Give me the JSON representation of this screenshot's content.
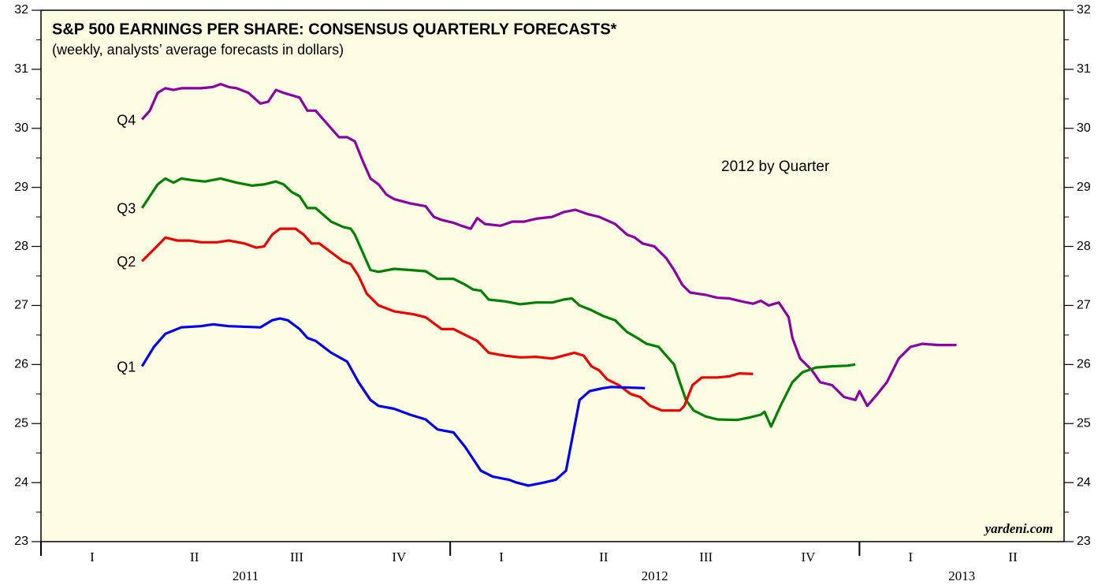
{
  "chart_data": {
    "type": "line",
    "title": "S&P 500 EARNINGS PER SHARE: CONSENSUS QUARTERLY FORECASTS*",
    "subtitle": "(weekly, analysts’ average forecasts in dollars)",
    "annotations": [
      "2012 by Quarter",
      "yardeni.com"
    ],
    "xlim": [
      2011,
      2013.5
    ],
    "year_ticks": [
      2011,
      2012,
      2013
    ],
    "quarter_labels": [
      {
        "value": 2011.125,
        "label": "I"
      },
      {
        "value": 2011.375,
        "label": "II"
      },
      {
        "value": 2011.625,
        "label": "III"
      },
      {
        "value": 2011.875,
        "label": "IV"
      },
      {
        "value": 2012.125,
        "label": "I"
      },
      {
        "value": 2012.375,
        "label": "II"
      },
      {
        "value": 2012.625,
        "label": "III"
      },
      {
        "value": 2012.875,
        "label": "IV"
      },
      {
        "value": 2013.125,
        "label": "I"
      },
      {
        "value": 2013.375,
        "label": "II"
      }
    ],
    "year_labels": [
      {
        "value": 2011.5,
        "label": "2011"
      },
      {
        "value": 2012.5,
        "label": "2012"
      },
      {
        "value": 2013.25,
        "label": "2013"
      }
    ],
    "ylim": [
      23,
      32
    ],
    "yticks": [
      23,
      24,
      25,
      26,
      27,
      28,
      29,
      30,
      31,
      32
    ],
    "series": [
      {
        "name": "Q4",
        "color": "#8b00a3",
        "x": [
          2011.247,
          2011.266,
          2011.285,
          2011.304,
          2011.324,
          2011.343,
          2011.391,
          2011.42,
          2011.439,
          2011.459,
          2011.478,
          2011.507,
          2011.536,
          2011.555,
          2011.574,
          2011.593,
          2011.632,
          2011.651,
          2011.671,
          2011.69,
          2011.728,
          2011.748,
          2011.767,
          2011.786,
          2011.805,
          2011.825,
          2011.844,
          2011.863,
          2011.902,
          2011.94,
          2011.96,
          2011.979,
          2012.008,
          2012.027,
          2012.05,
          2012.066,
          2012.085,
          2012.123,
          2012.152,
          2012.181,
          2012.21,
          2012.249,
          2012.277,
          2012.306,
          2012.335,
          2012.364,
          2012.403,
          2012.432,
          2012.451,
          2012.47,
          2012.499,
          2012.528,
          2012.547,
          2012.567,
          2012.586,
          2012.624,
          2012.653,
          2012.682,
          2012.711,
          2012.74,
          2012.759,
          2012.778,
          2012.803,
          2012.827,
          2012.836,
          2012.855,
          2012.884,
          2012.904,
          2012.933,
          2012.962,
          2012.99,
          2013.0,
          2013.019,
          2013.044,
          2013.067,
          2013.096,
          2013.125,
          2013.154,
          2013.193,
          2013.237
        ],
        "values": [
          30.15,
          30.3,
          30.6,
          30.68,
          30.65,
          30.68,
          30.68,
          30.7,
          30.75,
          30.7,
          30.68,
          30.6,
          30.42,
          30.45,
          30.65,
          30.6,
          30.52,
          30.3,
          30.3,
          30.15,
          29.85,
          29.85,
          29.78,
          29.45,
          29.15,
          29.05,
          28.88,
          28.8,
          28.73,
          28.68,
          28.5,
          28.45,
          28.4,
          28.35,
          28.3,
          28.48,
          28.38,
          28.35,
          28.42,
          28.42,
          28.47,
          28.5,
          28.58,
          28.62,
          28.55,
          28.5,
          28.38,
          28.2,
          28.15,
          28.05,
          28.0,
          27.8,
          27.6,
          27.35,
          27.22,
          27.18,
          27.13,
          27.12,
          27.07,
          27.03,
          27.08,
          27.0,
          27.05,
          26.8,
          26.45,
          26.1,
          25.9,
          25.7,
          25.65,
          25.45,
          25.4,
          25.55,
          25.3,
          25.5,
          25.7,
          26.1,
          26.3,
          26.35,
          26.33,
          26.33
        ]
      },
      {
        "name": "Q3",
        "color": "#008000",
        "x": [
          2011.247,
          2011.266,
          2011.285,
          2011.304,
          2011.324,
          2011.343,
          2011.372,
          2011.401,
          2011.439,
          2011.478,
          2011.516,
          2011.545,
          2011.574,
          2011.593,
          2011.613,
          2011.632,
          2011.651,
          2011.671,
          2011.709,
          2011.738,
          2011.757,
          2011.767,
          2011.786,
          2011.805,
          2011.825,
          2011.863,
          2011.902,
          2011.94,
          2011.969,
          2012.008,
          2012.037,
          2012.056,
          2012.075,
          2012.094,
          2012.133,
          2012.171,
          2012.21,
          2012.249,
          2012.277,
          2012.297,
          2012.316,
          2012.345,
          2012.374,
          2012.403,
          2012.432,
          2012.457,
          2012.48,
          2012.509,
          2012.528,
          2012.547,
          2012.561,
          2012.576,
          2012.595,
          2012.624,
          2012.653,
          2012.701,
          2012.73,
          2012.759,
          2012.768,
          2012.784,
          2012.807,
          2012.836,
          2012.861,
          2012.894,
          2012.933,
          2012.971,
          2012.99
        ],
        "values": [
          28.65,
          28.85,
          29.05,
          29.15,
          29.08,
          29.15,
          29.12,
          29.1,
          29.15,
          29.08,
          29.03,
          29.05,
          29.1,
          29.05,
          28.92,
          28.85,
          28.65,
          28.65,
          28.42,
          28.33,
          28.3,
          28.2,
          27.9,
          27.6,
          27.57,
          27.62,
          27.6,
          27.58,
          27.45,
          27.45,
          27.35,
          27.27,
          27.25,
          27.1,
          27.07,
          27.02,
          27.05,
          27.05,
          27.1,
          27.12,
          27.0,
          26.92,
          26.82,
          26.75,
          26.55,
          26.45,
          26.35,
          26.3,
          26.15,
          26.0,
          25.7,
          25.4,
          25.22,
          25.12,
          25.07,
          25.06,
          25.1,
          25.15,
          25.2,
          24.95,
          25.3,
          25.7,
          25.87,
          25.95,
          25.97,
          25.98,
          26.0
        ]
      },
      {
        "name": "Q2",
        "color": "#ee0000",
        "x": [
          2011.247,
          2011.276,
          2011.304,
          2011.333,
          2011.362,
          2011.391,
          2011.43,
          2011.459,
          2011.497,
          2011.526,
          2011.545,
          2011.565,
          2011.584,
          2011.622,
          2011.642,
          2011.661,
          2011.68,
          2011.709,
          2011.738,
          2011.757,
          2011.776,
          2011.796,
          2011.825,
          2011.863,
          2011.911,
          2011.94,
          2011.979,
          2012.008,
          2012.037,
          2012.066,
          2012.094,
          2012.133,
          2012.171,
          2012.21,
          2012.249,
          2012.277,
          2012.303,
          2012.326,
          2012.345,
          2012.364,
          2012.383,
          2012.412,
          2012.441,
          2012.464,
          2012.489,
          2012.518,
          2012.561,
          2012.572,
          2012.592,
          2012.615,
          2012.653,
          2012.682,
          2012.707,
          2012.74
        ],
        "values": [
          27.75,
          27.95,
          28.15,
          28.1,
          28.1,
          28.07,
          28.07,
          28.1,
          28.05,
          27.98,
          28.0,
          28.2,
          28.3,
          28.3,
          28.2,
          28.05,
          28.05,
          27.9,
          27.75,
          27.7,
          27.5,
          27.2,
          27.0,
          26.9,
          26.85,
          26.8,
          26.6,
          26.6,
          26.5,
          26.4,
          26.2,
          26.15,
          26.12,
          26.13,
          26.1,
          26.15,
          26.2,
          26.15,
          25.97,
          25.9,
          25.75,
          25.65,
          25.5,
          25.45,
          25.3,
          25.22,
          25.22,
          25.3,
          25.65,
          25.78,
          25.78,
          25.8,
          25.85,
          25.84
        ]
      },
      {
        "name": "Q1",
        "color": "#0000ee",
        "x": [
          2011.247,
          2011.276,
          2011.304,
          2011.343,
          2011.391,
          2011.42,
          2011.459,
          2011.536,
          2011.565,
          2011.584,
          2011.603,
          2011.632,
          2011.651,
          2011.671,
          2011.709,
          2011.748,
          2011.776,
          2011.805,
          2011.825,
          2011.863,
          2011.902,
          2011.94,
          2011.969,
          2012.008,
          2012.037,
          2012.075,
          2012.104,
          2012.143,
          2012.162,
          2012.191,
          2012.229,
          2012.258,
          2012.283,
          2012.316,
          2012.341,
          2012.374,
          2012.393,
          2012.476
        ],
        "values": [
          25.97,
          26.3,
          26.52,
          26.63,
          26.65,
          26.68,
          26.65,
          26.63,
          26.75,
          26.78,
          26.75,
          26.6,
          26.45,
          26.4,
          26.2,
          26.05,
          25.7,
          25.4,
          25.3,
          25.25,
          25.15,
          25.07,
          24.9,
          24.85,
          24.6,
          24.2,
          24.1,
          24.05,
          24.0,
          23.95,
          24.0,
          24.05,
          24.2,
          25.4,
          25.55,
          25.6,
          25.62,
          25.6
        ]
      }
    ]
  }
}
